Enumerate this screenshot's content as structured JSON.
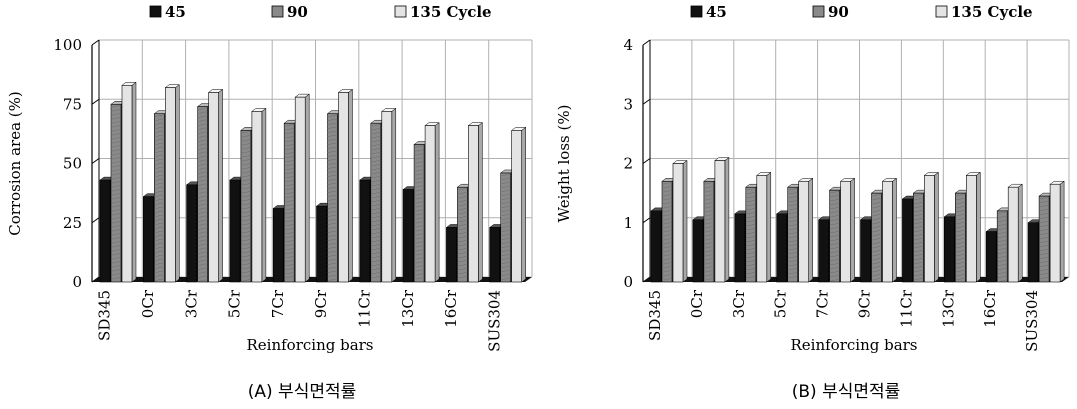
{
  "chart_data": [
    {
      "type": "bar",
      "panel": "A",
      "categories": [
        "SD345",
        "0Cr",
        "3Cr",
        "5Cr",
        "7Cr",
        "9Cr",
        "11Cr",
        "13Cr",
        "16Cr",
        "SUS304"
      ],
      "series": [
        {
          "name": "45",
          "values": [
            43,
            36,
            41,
            43,
            31,
            32,
            43,
            39,
            23,
            23
          ]
        },
        {
          "name": "90",
          "values": [
            75,
            71,
            74,
            64,
            67,
            71,
            67,
            58,
            40,
            46
          ]
        },
        {
          "name": "135 Cycle",
          "values": [
            83,
            82,
            80,
            72,
            78,
            80,
            72,
            66,
            66,
            64
          ]
        }
      ],
      "ylabel": "Corrosion area (%)",
      "xlabel": "Reinforcing bars",
      "yticks": [
        "0",
        "25",
        "50",
        "75",
        "100"
      ],
      "ylim": [
        0,
        100
      ],
      "caption": "(A) 부식면적률",
      "grid": true,
      "legend_position": "top"
    },
    {
      "type": "bar",
      "panel": "B",
      "categories": [
        "SD345",
        "0Cr",
        "3Cr",
        "5Cr",
        "7Cr",
        "9Cr",
        "11Cr",
        "13Cr",
        "16Cr",
        "SUS304"
      ],
      "series": [
        {
          "name": "45",
          "values": [
            1.2,
            1.05,
            1.15,
            1.15,
            1.05,
            1.05,
            1.4,
            1.1,
            0.85,
            1.0
          ]
        },
        {
          "name": "90",
          "values": [
            1.7,
            1.7,
            1.6,
            1.6,
            1.55,
            1.5,
            1.5,
            1.5,
            1.2,
            1.45
          ]
        },
        {
          "name": "135 Cycle",
          "values": [
            2.0,
            2.05,
            1.8,
            1.7,
            1.7,
            1.7,
            1.8,
            1.8,
            1.6,
            1.65
          ]
        }
      ],
      "ylabel": "Weight  loss  (%)",
      "xlabel": "Reinforcing bars",
      "yticks": [
        "0",
        "1",
        "2",
        "3",
        "4"
      ],
      "ylim": [
        0,
        4
      ],
      "caption": "(B) 부식면적률",
      "grid": true,
      "legend_position": "top"
    }
  ],
  "colors": {
    "series_front": [
      "#111111",
      "#8a8a8a",
      "#e4e4e4"
    ],
    "series_top": [
      "#555555",
      "#bdbdbd",
      "#f7f7f7"
    ],
    "series_side": [
      "#000000",
      "#5e5e5e",
      "#a8a8a8"
    ],
    "floor": "#111111",
    "grid": "#b0b0b0"
  }
}
